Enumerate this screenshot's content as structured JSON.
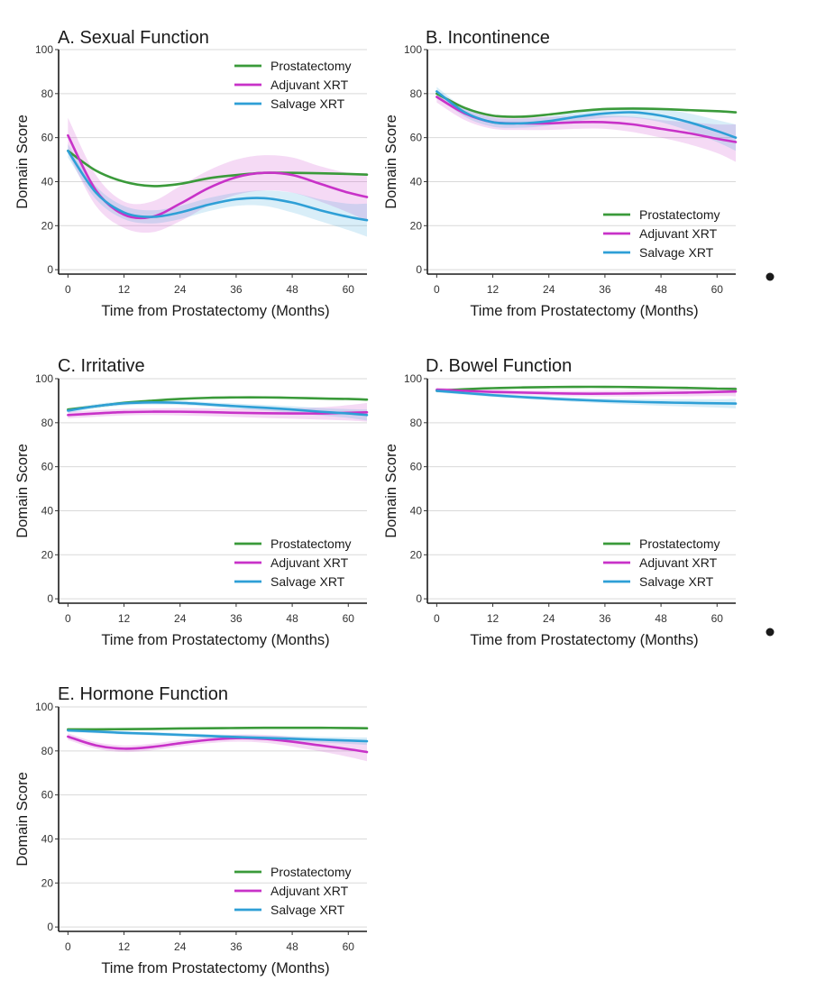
{
  "figure": {
    "chart_data": [
      {
        "type": "line",
        "title": "A. Sexual Function",
        "xlabel": "Time from Prostatectomy (Months)",
        "ylabel": "Domain Score",
        "x_ticks": [
          0,
          12,
          24,
          36,
          48,
          60
        ],
        "y_ticks": [
          0,
          20,
          40,
          60,
          80,
          100
        ],
        "xlim": [
          -2,
          64
        ],
        "ylim": [
          -2,
          100
        ],
        "grid": "horizontal",
        "legend_position": "top-right",
        "series": [
          {
            "name": "Prostatectomy",
            "color": "#3a9a3a",
            "x": [
              0,
              6,
              12,
              18,
              24,
              30,
              36,
              42,
              48,
              54,
              60,
              64
            ],
            "y": [
              54,
              45,
              40,
              38,
              39,
              41.5,
              43,
              44,
              44,
              43.8,
              43.5,
              43.2
            ]
          },
          {
            "name": "Adjuvant XRT",
            "color": "#c832c8",
            "x": [
              0,
              6,
              12,
              18,
              24,
              30,
              36,
              42,
              48,
              54,
              60,
              64
            ],
            "y": [
              61,
              36,
              25,
              24,
              30,
              37,
              42,
              44,
              43,
              39,
              35,
              33
            ],
            "band_lo": [
              53,
              29,
              19,
              17,
              22,
              29,
              34,
              36,
              35,
              31,
              26,
              22
            ],
            "band_hi": [
              69,
              43,
              31,
              31,
              38,
              45,
              50,
              52,
              51,
              47,
              44,
              44
            ]
          },
          {
            "name": "Salvage XRT",
            "color": "#2e9fd6",
            "x": [
              0,
              6,
              12,
              18,
              24,
              30,
              36,
              42,
              48,
              54,
              60,
              64
            ],
            "y": [
              54,
              35,
              26,
              24,
              26,
              29.5,
              32,
              32.5,
              30.5,
              27,
              24,
              22.5
            ],
            "band_lo": [
              51,
              32,
              23,
              21,
              23,
              26.5,
              29,
              29,
              26,
              22,
              18,
              15
            ],
            "band_hi": [
              57,
              38,
              29,
              27,
              29,
              32.5,
              35,
              36,
              35,
              32,
              30,
              30
            ]
          }
        ]
      },
      {
        "type": "line",
        "title": "B. Incontinence",
        "xlabel": "Time from Prostatectomy (Months)",
        "ylabel": "Domain Score",
        "x_ticks": [
          0,
          12,
          24,
          36,
          48,
          60
        ],
        "y_ticks": [
          0,
          20,
          40,
          60,
          80,
          100
        ],
        "xlim": [
          -2,
          64
        ],
        "ylim": [
          -2,
          100
        ],
        "grid": "horizontal",
        "legend_position": "bottom-right",
        "series": [
          {
            "name": "Prostatectomy",
            "color": "#3a9a3a",
            "x": [
              0,
              6,
              12,
              18,
              24,
              30,
              36,
              42,
              48,
              54,
              60,
              64
            ],
            "y": [
              80,
              73.5,
              70,
              69.5,
              70.5,
              72,
              73,
              73.2,
              73,
              72.5,
              72,
              71.5
            ]
          },
          {
            "name": "Adjuvant XRT",
            "color": "#c832c8",
            "x": [
              0,
              6,
              12,
              18,
              24,
              30,
              36,
              42,
              48,
              54,
              60,
              64
            ],
            "y": [
              78.5,
              71,
              67,
              66.5,
              66.5,
              67,
              67,
              66,
              64,
              62,
              59.5,
              58
            ],
            "band_lo": [
              76,
              68,
              64,
              63.5,
              63.5,
              64,
              64,
              62.5,
              60,
              57,
              53,
              49
            ],
            "band_hi": [
              81,
              74,
              70,
              69.5,
              69.5,
              70,
              70,
              69.5,
              68,
              67,
              66,
              66
            ]
          },
          {
            "name": "Salvage XRT",
            "color": "#2e9fd6",
            "x": [
              0,
              6,
              12,
              18,
              24,
              30,
              36,
              42,
              48,
              54,
              60,
              64
            ],
            "y": [
              81,
              71.5,
              67,
              66.5,
              67.5,
              69.5,
              71,
              71.5,
              70,
              67,
              63,
              60
            ],
            "band_lo": [
              79,
              69.5,
              65,
              64.5,
              65.5,
              67.5,
              69,
              69,
              67,
              63,
              58,
              54
            ],
            "band_hi": [
              83,
              73.5,
              69,
              68.5,
              69.5,
              71.5,
              73,
              74,
              73,
              71,
              68,
              66
            ]
          }
        ]
      },
      {
        "type": "line",
        "title": "C. Irritative",
        "xlabel": "Time from Prostatectomy (Months)",
        "ylabel": "Domain Score",
        "x_ticks": [
          0,
          12,
          24,
          36,
          48,
          60
        ],
        "y_ticks": [
          0,
          20,
          40,
          60,
          80,
          100
        ],
        "xlim": [
          -2,
          64
        ],
        "ylim": [
          -2,
          100
        ],
        "grid": "horizontal",
        "legend_position": "bottom-right",
        "series": [
          {
            "name": "Prostatectomy",
            "color": "#3a9a3a",
            "x": [
              0,
              6,
              12,
              18,
              24,
              30,
              36,
              42,
              48,
              54,
              60,
              64
            ],
            "y": [
              86,
              87.5,
              89,
              90,
              90.8,
              91.3,
              91.5,
              91.5,
              91.3,
              91,
              90.8,
              90.5
            ]
          },
          {
            "name": "Adjuvant XRT",
            "color": "#c832c8",
            "x": [
              0,
              6,
              12,
              18,
              24,
              30,
              36,
              42,
              48,
              54,
              60,
              64
            ],
            "y": [
              83.5,
              84.2,
              84.8,
              85,
              85,
              84.8,
              84.5,
              84.3,
              84.2,
              84.2,
              84.5,
              84.7
            ],
            "band_lo": [
              82,
              82.7,
              83.3,
              83.5,
              83.3,
              83,
              82.6,
              82.2,
              81.8,
              81.4,
              81,
              80.5
            ],
            "band_hi": [
              85,
              85.7,
              86.3,
              86.5,
              86.7,
              86.6,
              86.4,
              86.4,
              86.6,
              87,
              88,
              89
            ]
          },
          {
            "name": "Salvage XRT",
            "color": "#2e9fd6",
            "x": [
              0,
              6,
              12,
              18,
              24,
              30,
              36,
              42,
              48,
              54,
              60,
              64
            ],
            "y": [
              85.5,
              87.5,
              88.8,
              89.2,
              89,
              88.3,
              87.5,
              86.8,
              86,
              85,
              84.2,
              83.5
            ],
            "band_lo": [
              84.5,
              86.5,
              87.8,
              88.2,
              88,
              87.3,
              86.3,
              85.5,
              84.5,
              83.3,
              82.2,
              81
            ],
            "band_hi": [
              86.5,
              88.5,
              89.8,
              90.2,
              90,
              89.3,
              88.7,
              88.1,
              87.5,
              86.7,
              86.2,
              86
            ]
          }
        ]
      },
      {
        "type": "line",
        "title": "D. Bowel Function",
        "xlabel": "Time from Prostatectomy (Months)",
        "ylabel": "Domain Score",
        "x_ticks": [
          0,
          12,
          24,
          36,
          48,
          60
        ],
        "y_ticks": [
          0,
          20,
          40,
          60,
          80,
          100
        ],
        "xlim": [
          -2,
          64
        ],
        "ylim": [
          -2,
          100
        ],
        "grid": "horizontal",
        "legend_position": "bottom-right",
        "series": [
          {
            "name": "Prostatectomy",
            "color": "#3a9a3a",
            "x": [
              0,
              6,
              12,
              18,
              24,
              30,
              36,
              42,
              48,
              54,
              60,
              64
            ],
            "y": [
              94.5,
              95.2,
              95.7,
              96,
              96.2,
              96.3,
              96.3,
              96.2,
              96,
              95.8,
              95.5,
              95.3
            ]
          },
          {
            "name": "Adjuvant XRT",
            "color": "#c832c8",
            "x": [
              0,
              6,
              12,
              18,
              24,
              30,
              36,
              42,
              48,
              54,
              60,
              64
            ],
            "y": [
              95,
              94.5,
              94,
              93.7,
              93.4,
              93.2,
              93.2,
              93.3,
              93.5,
              93.7,
              94,
              94.2
            ],
            "band_lo": [
              94,
              93.5,
              93,
              92.7,
              92.3,
              92,
              91.9,
              91.9,
              92,
              92,
              92.1,
              92
            ],
            "band_hi": [
              96,
              95.5,
              95,
              94.7,
              94.5,
              94.4,
              94.5,
              94.7,
              95,
              95.4,
              95.9,
              96.4
            ]
          },
          {
            "name": "Salvage XRT",
            "color": "#2e9fd6",
            "x": [
              0,
              6,
              12,
              18,
              24,
              30,
              36,
              42,
              48,
              54,
              60,
              64
            ],
            "y": [
              94.5,
              93.5,
              92.5,
              91.7,
              91,
              90.4,
              89.9,
              89.5,
              89.2,
              89,
              88.8,
              88.7
            ],
            "band_lo": [
              93.7,
              92.7,
              91.7,
              90.9,
              90.1,
              89.4,
              88.8,
              88.2,
              87.7,
              87.3,
              86.9,
              86.5
            ],
            "band_hi": [
              95.3,
              94.3,
              93.3,
              92.5,
              91.9,
              91.4,
              91,
              90.8,
              90.7,
              90.7,
              90.7,
              90.9
            ]
          }
        ]
      },
      {
        "type": "line",
        "title": "E. Hormone Function",
        "xlabel": "Time from Prostatectomy (Months)",
        "ylabel": "Domain Score",
        "x_ticks": [
          0,
          12,
          24,
          36,
          48,
          60
        ],
        "y_ticks": [
          0,
          20,
          40,
          60,
          80,
          100
        ],
        "xlim": [
          -2,
          64
        ],
        "ylim": [
          -2,
          100
        ],
        "grid": "horizontal",
        "legend_position": "bottom-right",
        "series": [
          {
            "name": "Prostatectomy",
            "color": "#3a9a3a",
            "x": [
              0,
              6,
              12,
              18,
              24,
              30,
              36,
              42,
              48,
              54,
              60,
              64
            ],
            "y": [
              89.8,
              89.8,
              89.9,
              90,
              90.2,
              90.3,
              90.4,
              90.5,
              90.5,
              90.5,
              90.4,
              90.3
            ]
          },
          {
            "name": "Adjuvant XRT",
            "color": "#c832c8",
            "x": [
              0,
              6,
              12,
              18,
              24,
              30,
              36,
              42,
              48,
              54,
              60,
              64
            ],
            "y": [
              86.5,
              82.5,
              81,
              81.8,
              83.5,
              85,
              85.8,
              85.5,
              84.2,
              82.5,
              80.8,
              79.5
            ],
            "band_lo": [
              85,
              81,
              79.5,
              80.3,
              82,
              83.5,
              84.2,
              83.7,
              82,
              79.8,
              77.3,
              75.3
            ],
            "band_hi": [
              88,
              84,
              82.5,
              83.3,
              85,
              86.5,
              87.4,
              87.3,
              86.4,
              85.2,
              84.3,
              83.7
            ]
          },
          {
            "name": "Salvage XRT",
            "color": "#2e9fd6",
            "x": [
              0,
              6,
              12,
              18,
              24,
              30,
              36,
              42,
              48,
              54,
              60,
              64
            ],
            "y": [
              89.3,
              88.8,
              88.2,
              87.8,
              87.3,
              86.8,
              86.3,
              85.9,
              85.5,
              85.1,
              84.7,
              84.4
            ],
            "band_lo": [
              88.5,
              88,
              87.4,
              87,
              86.5,
              86,
              85.4,
              84.9,
              84.3,
              83.8,
              83.2,
              82.7
            ],
            "band_hi": [
              90.1,
              89.6,
              89,
              88.6,
              88.1,
              87.6,
              87.2,
              86.9,
              86.7,
              86.4,
              86.2,
              86.1
            ]
          }
        ]
      }
    ]
  }
}
